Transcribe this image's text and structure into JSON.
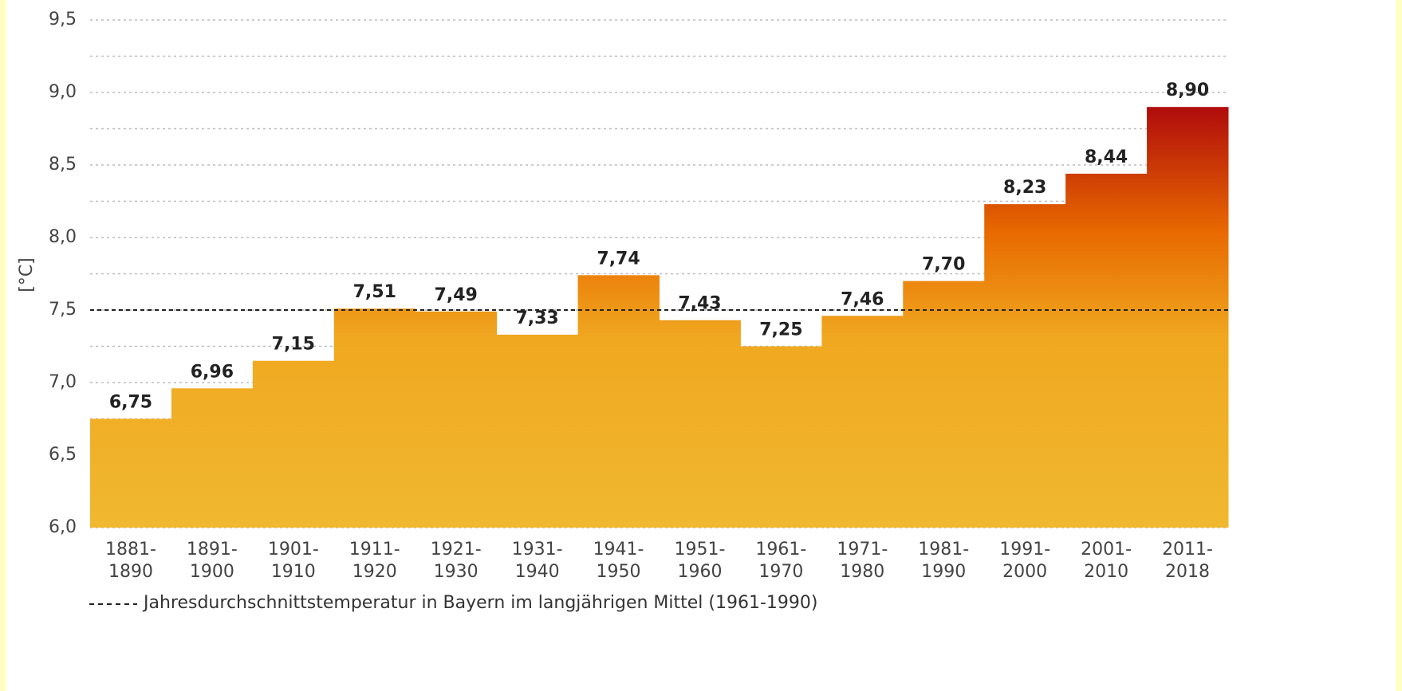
{
  "chart_data": {
    "type": "step-bar",
    "y_label": "[°C]",
    "categories": [
      "1881-\n1890",
      "1891-\n1900",
      "1901-\n1910",
      "1911-\n1920",
      "1921-\n1930",
      "1931-\n1940",
      "1941-\n1950",
      "1951-\n1960",
      "1961-\n1970",
      "1971-\n1980",
      "1981-\n1990",
      "1991-\n2000",
      "2001-\n2010",
      "2011-\n2018"
    ],
    "values": [
      6.75,
      6.96,
      7.15,
      7.51,
      7.49,
      7.33,
      7.74,
      7.43,
      7.25,
      7.46,
      7.7,
      8.23,
      8.44,
      8.9
    ],
    "value_labels": [
      "6,75",
      "6,96",
      "7,15",
      "7,51",
      "7,49",
      "7,33",
      "7,74",
      "7,43",
      "7,25",
      "7,46",
      "7,70",
      "8,23",
      "8,44",
      "8,90"
    ],
    "gradient_colors": [
      "#f0b830",
      "#f0a820",
      "#e86a00",
      "#b00c0c"
    ],
    "ylim": [
      6.0,
      9.5
    ],
    "yticks": [
      {
        "value": 6.0,
        "label": "6,0"
      },
      {
        "value": 6.5,
        "label": "6,5"
      },
      {
        "value": 7.0,
        "label": "7,0"
      },
      {
        "value": 7.5,
        "label": "7,5"
      },
      {
        "value": 8.0,
        "label": "8,0"
      },
      {
        "value": 8.5,
        "label": "8,5"
      },
      {
        "value": 9.0,
        "label": "9,0"
      },
      {
        "value": 9.5,
        "label": "9,5"
      }
    ],
    "minor_grid": [
      6.25,
      6.75,
      7.25,
      7.75,
      8.25,
      8.75,
      9.25
    ],
    "grid": true,
    "reference_line": {
      "value": 7.5,
      "label": "Jahresdurchschnittstemperatur in Bayern im langjährigen Mittel (1961-1990)"
    }
  }
}
